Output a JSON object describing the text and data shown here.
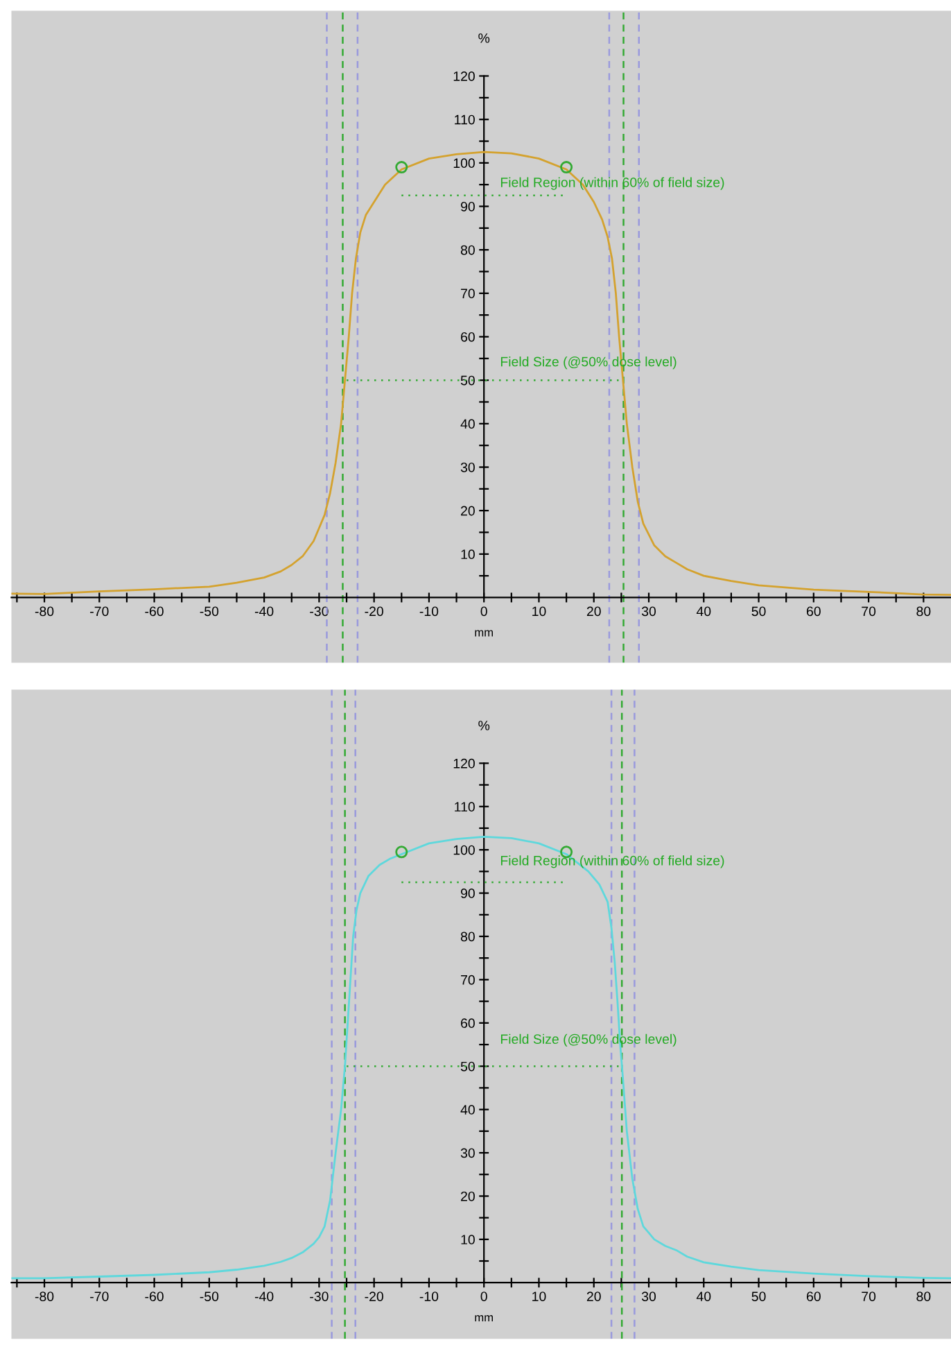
{
  "chart_data": [
    {
      "type": "line",
      "xlabel": "mm",
      "ylabel": "%",
      "xlim": [
        -86,
        85
      ],
      "ylim": [
        -15,
        135
      ],
      "xticks": [
        {
          "value": -85,
          "label": null
        },
        -80,
        {
          "value": -75,
          "label": null
        },
        -70,
        {
          "value": -65,
          "label": null
        },
        -60,
        {
          "value": -55,
          "label": null
        },
        -50,
        {
          "value": -45,
          "label": null
        },
        -40,
        {
          "value": -35,
          "label": null
        },
        -30,
        {
          "value": -25,
          "label": null
        },
        -20,
        {
          "value": -15,
          "label": null
        },
        -10,
        {
          "value": -5,
          "label": null
        },
        0,
        {
          "value": 5,
          "label": null
        },
        10,
        {
          "value": 15,
          "label": null
        },
        20,
        {
          "value": 25,
          "label": null
        },
        30,
        {
          "value": 35,
          "label": null
        },
        40,
        {
          "value": 45,
          "label": null
        },
        50,
        {
          "value": 55,
          "label": null
        },
        60,
        {
          "value": 65,
          "label": null
        },
        70,
        {
          "value": 75,
          "label": null
        },
        80
      ],
      "yticks": [
        {
          "value": 5,
          "label": null
        },
        10,
        {
          "value": 15,
          "label": null
        },
        20,
        {
          "value": 25,
          "label": null
        },
        30,
        {
          "value": 35,
          "label": null
        },
        40,
        {
          "value": 45,
          "label": null
        },
        50,
        {
          "value": 55,
          "label": null
        },
        60,
        {
          "value": 65,
          "label": null
        },
        70,
        {
          "value": 75,
          "label": null
        },
        80,
        {
          "value": 85,
          "label": null
        },
        90,
        {
          "value": 95,
          "label": null
        },
        100,
        {
          "value": 105,
          "label": null
        },
        110,
        {
          "value": 115,
          "label": null
        },
        120
      ],
      "grid": false,
      "series": [
        {
          "color": "#d4a22e",
          "line_style": "solid",
          "x": [
            -86,
            -80,
            -70,
            -60,
            -50,
            -45,
            -40,
            -37,
            -35,
            -33,
            -31,
            -30,
            -29,
            -28,
            -27,
            -26,
            -25.3,
            -24.6,
            -24,
            -23.3,
            -22.5,
            -21.5,
            -20,
            -18,
            -15,
            -10,
            -5,
            0,
            5,
            10,
            15,
            18,
            20,
            21.5,
            22.5,
            23.3,
            24,
            24.6,
            25.3,
            26,
            27,
            28,
            29,
            30,
            31,
            33,
            35,
            37,
            40,
            45,
            50,
            60,
            70,
            80,
            85
          ],
          "values": [
            0.9,
            0.8,
            1.4,
            1.9,
            2.5,
            3.4,
            4.6,
            6,
            7.5,
            9.5,
            13,
            16,
            19,
            24,
            31,
            40,
            50,
            60,
            70,
            78,
            84,
            88,
            91,
            95,
            98.5,
            101,
            102,
            102.5,
            102.2,
            101,
            98.5,
            95,
            91,
            87,
            83,
            78,
            70,
            60,
            50,
            40,
            30,
            22,
            17,
            14.5,
            12,
            9.5,
            8,
            6.5,
            5,
            3.8,
            2.8,
            1.8,
            1.3,
            0.7,
            0.6
          ]
        },
        {
          "type": "line",
          "color": "#33aa33",
          "line_style": "dotted",
          "x": [
            -25,
            25
          ],
          "values": [
            50,
            50
          ]
        },
        {
          "type": "line",
          "color": "#33aa33",
          "line_style": "dotted",
          "x": [
            -15,
            15
          ],
          "values": [
            92.5,
            92.5
          ]
        },
        {
          "type": "scatter",
          "color": "#33aa33",
          "marker": "circle",
          "x": [
            -15,
            15
          ],
          "values": [
            99,
            99
          ]
        }
      ],
      "ref_lines": [
        {
          "axis": "x",
          "value": -28.6,
          "color": "#9999dd",
          "line_style": "dashed"
        },
        {
          "axis": "x",
          "value": -25.7,
          "color": "#33aa33",
          "line_style": "dashed"
        },
        {
          "axis": "x",
          "value": -23,
          "color": "#9999dd",
          "line_style": "dashed"
        },
        {
          "axis": "x",
          "value": 22.8,
          "color": "#9999dd",
          "line_style": "dashed"
        },
        {
          "axis": "x",
          "value": 25.4,
          "color": "#33aa33",
          "line_style": "dashed"
        },
        {
          "axis": "x",
          "value": 28.2,
          "color": "#9999dd",
          "line_style": "dashed"
        }
      ],
      "annotations": [
        "Field Region (within 60% of field size)",
        "Field Size (@50% dose level)"
      ]
    },
    {
      "type": "line",
      "xlabel": "mm",
      "ylabel": "%",
      "xlim": [
        -86,
        85
      ],
      "ylim": [
        -13,
        137
      ],
      "xticks": [
        {
          "value": -85,
          "label": null
        },
        -80,
        {
          "value": -75,
          "label": null
        },
        -70,
        {
          "value": -65,
          "label": null
        },
        -60,
        {
          "value": -55,
          "label": null
        },
        -50,
        {
          "value": -45,
          "label": null
        },
        -40,
        {
          "value": -35,
          "label": null
        },
        -30,
        {
          "value": -25,
          "label": null
        },
        -20,
        {
          "value": -15,
          "label": null
        },
        -10,
        {
          "value": -5,
          "label": null
        },
        0,
        {
          "value": 5,
          "label": null
        },
        10,
        {
          "value": 15,
          "label": null
        },
        20,
        {
          "value": 25,
          "label": null
        },
        30,
        {
          "value": 35,
          "label": null
        },
        40,
        {
          "value": 45,
          "label": null
        },
        50,
        {
          "value": 55,
          "label": null
        },
        60,
        {
          "value": 65,
          "label": null
        },
        70,
        {
          "value": 75,
          "label": null
        },
        80
      ],
      "yticks": [
        {
          "value": 5,
          "label": null
        },
        10,
        {
          "value": 15,
          "label": null
        },
        20,
        {
          "value": 25,
          "label": null
        },
        30,
        {
          "value": 35,
          "label": null
        },
        40,
        {
          "value": 45,
          "label": null
        },
        50,
        {
          "value": 55,
          "label": null
        },
        60,
        {
          "value": 65,
          "label": null
        },
        70,
        {
          "value": 75,
          "label": null
        },
        80,
        {
          "value": 85,
          "label": null
        },
        90,
        {
          "value": 95,
          "label": null
        },
        100,
        {
          "value": 105,
          "label": null
        },
        110,
        {
          "value": 115,
          "label": null
        },
        120
      ],
      "grid": false,
      "series": [
        {
          "color": "#5ed8dc",
          "line_style": "solid",
          "x": [
            -86,
            -80,
            -70,
            -60,
            -50,
            -45,
            -40,
            -37,
            -35,
            -33,
            -31,
            -30,
            -29,
            -28,
            -27,
            -26,
            -25.3,
            -24.8,
            -24.3,
            -23.8,
            -23.2,
            -22.5,
            -21,
            -19,
            -17,
            -15,
            -10,
            -5,
            0,
            5,
            10,
            15,
            17,
            19,
            21,
            22.5,
            23.2,
            23.8,
            24.3,
            24.8,
            25.3,
            26,
            27,
            28,
            29,
            30,
            31,
            33,
            35,
            37,
            40,
            45,
            50,
            60,
            70,
            80,
            85
          ],
          "values": [
            1,
            1,
            1.4,
            1.8,
            2.4,
            3,
            3.9,
            4.8,
            5.7,
            7,
            9,
            10.5,
            13,
            19,
            30,
            40,
            50,
            60,
            70,
            80,
            86,
            90,
            94,
            96.5,
            98,
            99,
            101.5,
            102.5,
            103,
            102.7,
            101.5,
            99,
            97,
            95,
            92,
            88,
            82,
            74,
            65,
            55,
            47,
            35,
            24,
            17,
            13,
            11.5,
            10,
            8.5,
            7.5,
            6,
            4.7,
            3.7,
            2.9,
            2.1,
            1.5,
            1.1,
            1
          ]
        },
        {
          "type": "line",
          "color": "#33aa33",
          "line_style": "dotted",
          "x": [
            -25,
            25
          ],
          "values": [
            50,
            50
          ]
        },
        {
          "type": "line",
          "color": "#33aa33",
          "line_style": "dotted",
          "x": [
            -15,
            15
          ],
          "values": [
            92.5,
            92.5
          ]
        },
        {
          "type": "scatter",
          "color": "#33aa33",
          "marker": "circle",
          "x": [
            -15,
            15
          ],
          "values": [
            99.5,
            99.5
          ]
        }
      ],
      "ref_lines": [
        {
          "axis": "x",
          "value": -27.7,
          "color": "#9999dd",
          "line_style": "dashed"
        },
        {
          "axis": "x",
          "value": -25.3,
          "color": "#33aa33",
          "line_style": "dashed"
        },
        {
          "axis": "x",
          "value": -23.4,
          "color": "#9999dd",
          "line_style": "dashed"
        },
        {
          "axis": "x",
          "value": 23.2,
          "color": "#9999dd",
          "line_style": "dashed"
        },
        {
          "axis": "x",
          "value": 25.1,
          "color": "#33aa33",
          "line_style": "dashed"
        },
        {
          "axis": "x",
          "value": 27.4,
          "color": "#9999dd",
          "line_style": "dashed"
        }
      ],
      "annotations": [
        "Field Region (within 60% of field size)",
        "Field Size (@50% dose level)"
      ]
    }
  ]
}
